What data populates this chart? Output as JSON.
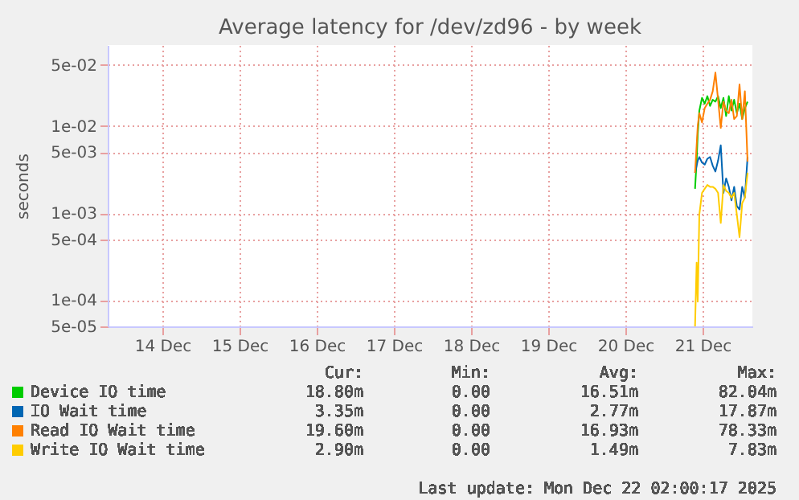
{
  "chart_data": {
    "type": "line",
    "title": "Average latency for /dev/zd96 - by week",
    "ylabel": "seconds",
    "log": true,
    "grid": true,
    "legend": "bottom",
    "marker": "none",
    "line_style": "solid",
    "x": [
      "2025-12-21T09:40",
      "2025-12-21T10:10",
      "2025-12-21T10:30",
      "2025-12-21T11:00",
      "2025-12-21T11:50",
      "2025-12-21T12:40",
      "2025-12-21T13:30",
      "2025-12-21T14:20",
      "2025-12-21T15:10",
      "2025-12-21T16:00",
      "2025-12-21T16:50",
      "2025-12-21T17:40",
      "2025-12-21T18:30",
      "2025-12-21T19:20",
      "2025-12-21T20:10",
      "2025-12-21T21:00",
      "2025-12-21T21:50",
      "2025-12-21T22:40",
      "2025-12-21T23:30",
      "2025-12-22T00:20",
      "2025-12-22T01:10",
      "2025-12-22T02:00"
    ],
    "xlim": [
      "2025-12-13T19:00",
      "2025-12-22T03:30"
    ],
    "xticks": [
      {
        "value": "2025-12-14T12:00",
        "label": "14 Dec"
      },
      {
        "value": "2025-12-15T12:00",
        "label": "15 Dec"
      },
      {
        "value": "2025-12-16T12:00",
        "label": "16 Dec"
      },
      {
        "value": "2025-12-17T12:00",
        "label": "17 Dec"
      },
      {
        "value": "2025-12-18T12:00",
        "label": "18 Dec"
      },
      {
        "value": "2025-12-19T12:00",
        "label": "19 Dec"
      },
      {
        "value": "2025-12-20T12:00",
        "label": "20 Dec"
      },
      {
        "value": "2025-12-21T12:00",
        "label": "21 Dec"
      }
    ],
    "ylim": [
      5e-05,
      0.085
    ],
    "yticks": [
      {
        "value": 5e-05,
        "label": "5e-05"
      },
      {
        "value": 0.0001,
        "label": "1e-04"
      },
      {
        "value": 0.0005,
        "label": "5e-04"
      },
      {
        "value": 0.001,
        "label": "1e-03"
      },
      {
        "value": 0.005,
        "label": "5e-03"
      },
      {
        "value": 0.01,
        "label": "1e-02"
      },
      {
        "value": 0.05,
        "label": "5e-02"
      }
    ],
    "series": [
      {
        "name": "Device IO time",
        "color": "#00cc00",
        "values": [
          0.0019,
          0.004,
          0.008,
          0.015,
          0.021,
          0.018,
          0.022,
          0.017,
          0.02,
          0.019,
          0.022,
          0.016,
          0.021,
          0.013,
          0.022,
          0.015,
          0.02,
          0.014,
          0.018,
          0.012,
          0.016,
          0.019
        ]
      },
      {
        "name": "IO Wait time",
        "color": "#0066b3",
        "values": [
          0.0029,
          0.0035,
          0.004,
          0.0044,
          0.0038,
          0.0036,
          0.0042,
          0.0044,
          0.0035,
          0.003,
          0.004,
          0.006,
          0.0017,
          0.0025,
          0.002,
          0.0014,
          0.002,
          0.0012,
          0.0011,
          0.002,
          0.0015,
          0.0044
        ]
      },
      {
        "name": "Read IO Wait time",
        "color": "#ff8000",
        "values": [
          0.0029,
          0.006,
          0.01,
          0.014,
          0.011,
          0.016,
          0.018,
          0.02,
          0.025,
          0.041,
          0.02,
          0.0095,
          0.019,
          0.015,
          0.014,
          0.02,
          0.012,
          0.013,
          0.03,
          0.012,
          0.025,
          0.0039
        ]
      },
      {
        "name": "Write IO Wait time",
        "color": "#ffcc00",
        "values": [
          5e-05,
          0.00027,
          9.6e-05,
          0.00096,
          0.0017,
          0.0019,
          0.0021,
          0.002,
          0.002,
          0.0019,
          0.0017,
          0.00077,
          0.0021,
          0.0018,
          0.0017,
          0.0015,
          0.0017,
          0.00096,
          0.00053,
          0.0013,
          0.0015,
          0.0029
        ]
      }
    ],
    "annotations": [
      "Cur:",
      "Min:",
      "Avg:",
      "Max:",
      "18.80m",
      "0.00",
      "16.51m",
      "82.04m",
      "3.35m",
      "0.00",
      "2.77m",
      "17.87m",
      "19.60m",
      "0.00",
      "16.93m",
      "78.33m",
      "2.90m",
      "0.00",
      "1.49m",
      "7.83m",
      "Last update: Mon Dec 22 02:00:17 2025"
    ]
  }
}
